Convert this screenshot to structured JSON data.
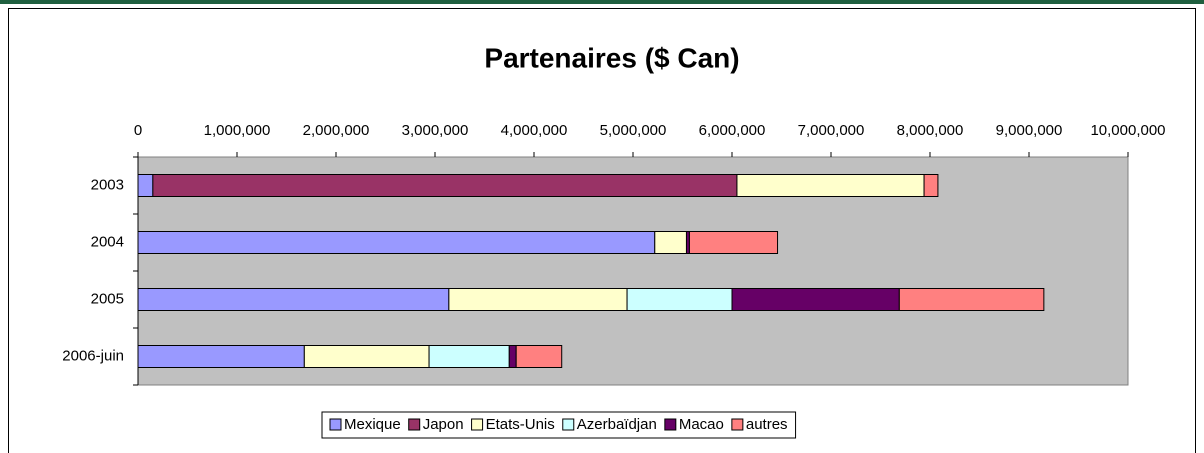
{
  "chart_data": {
    "type": "stacked_bar_horizontal",
    "title": "Partenaires ($ Can)",
    "categories": [
      "2003",
      "2004",
      "2005",
      "2006-juin"
    ],
    "series": [
      {
        "name": "Mexique",
        "color": "#9999ff",
        "values": [
          150000,
          5220000,
          3140000,
          1680000
        ]
      },
      {
        "name": "Japon",
        "color": "#993366",
        "values": [
          5900000,
          0,
          0,
          0
        ]
      },
      {
        "name": "Etats-Unis",
        "color": "#ffffcc",
        "values": [
          1890000,
          320000,
          1800000,
          1260000
        ]
      },
      {
        "name": "Azerbaïdjan",
        "color": "#ccffff",
        "values": [
          0,
          0,
          1060000,
          810000
        ]
      },
      {
        "name": "Macao",
        "color": "#660066",
        "values": [
          0,
          30000,
          1690000,
          70000
        ]
      },
      {
        "name": "autres",
        "color": "#ff8080",
        "values": [
          140000,
          890000,
          1460000,
          460000
        ]
      }
    ],
    "xlim": [
      0,
      10000000
    ],
    "xticks": [
      0,
      {
        "value": 1000000,
        "label": "1,000,000"
      },
      {
        "value": 2000000,
        "label": "2,000,000"
      },
      {
        "value": 3000000,
        "label": "3,000,000"
      },
      {
        "value": 4000000,
        "label": "4,000,000"
      },
      {
        "value": 5000000,
        "label": "5,000,000"
      },
      {
        "value": 6000000,
        "label": "6,000,000"
      },
      {
        "value": 7000000,
        "label": "7,000,000"
      },
      {
        "value": 8000000,
        "label": "8,000,000"
      },
      {
        "value": 9000000,
        "label": "9,000,000"
      },
      {
        "value": 10000000,
        "label": "10,000,000"
      }
    ],
    "plot_background": "#c0c0c0",
    "legend": "bottom"
  }
}
